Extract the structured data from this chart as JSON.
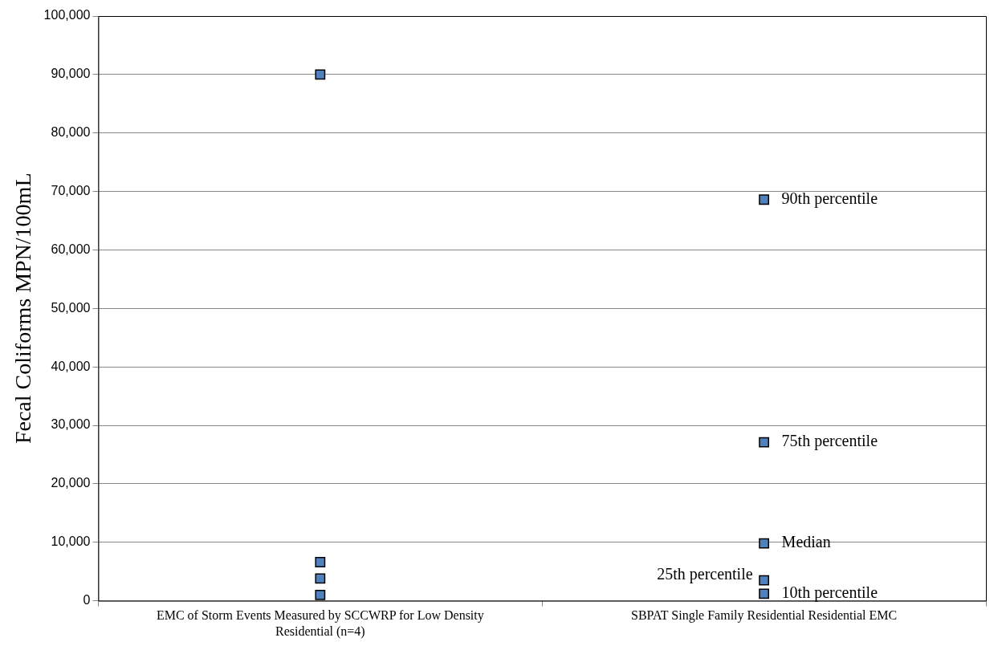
{
  "chart_data": {
    "type": "scatter",
    "ylabel": "Fecal Coliforms MPN/100mL",
    "categories": [
      "EMC of Storm Events Measured by SCCWRP for Low Density Residential (n=4)",
      "SBPAT Single Family Residential Residential EMC"
    ],
    "series": [
      {
        "color": "#4f81bd",
        "x": [
          "EMC of Storm Events Measured by SCCWRP for Low Density Residential (n=4)",
          "EMC of Storm Events Measured by SCCWRP for Low Density Residential (n=4)",
          "EMC of Storm Events Measured by SCCWRP for Low Density Residential (n=4)",
          "EMC of Storm Events Measured by SCCWRP for Low Density Residential (n=4)",
          "SBPAT Single Family Residential Residential EMC",
          "SBPAT Single Family Residential Residential EMC",
          "SBPAT Single Family Residential Residential EMC",
          "SBPAT Single Family Residential Residential EMC",
          "SBPAT Single Family Residential Residential EMC"
        ],
        "values": [
          90000,
          6600,
          3800,
          1000,
          68600,
          27100,
          9800,
          3500,
          1200
        ]
      }
    ],
    "annotations": [
      {
        "text": "90th percentile",
        "x": "SBPAT Single Family Residential Residential EMC",
        "y": 68600
      },
      {
        "text": "75th percentile",
        "x": "SBPAT Single Family Residential Residential EMC",
        "y": 27100
      },
      {
        "text": "Median",
        "x": "SBPAT Single Family Residential Residential EMC",
        "y": 9800
      },
      {
        "text": "25th percentile",
        "x": "SBPAT Single Family Residential Residential EMC",
        "y": 3500
      },
      {
        "text": "10th percentile",
        "x": "SBPAT Single Family Residential Residential EMC",
        "y": 1200
      }
    ],
    "ylim": [
      0,
      100000
    ],
    "yticks": [
      0,
      {
        "value": 10000,
        "label": "10,000"
      },
      {
        "value": 20000,
        "label": "20,000"
      },
      {
        "value": 30000,
        "label": "30,000"
      },
      {
        "value": 40000,
        "label": "40,000"
      },
      {
        "value": 50000,
        "label": "50,000"
      },
      {
        "value": 60000,
        "label": "60,000"
      },
      {
        "value": 70000,
        "label": "70,000"
      },
      {
        "value": 80000,
        "label": "80,000"
      },
      {
        "value": 90000,
        "label": "90,000"
      },
      {
        "value": 100000,
        "label": "100,000"
      }
    ],
    "grid": "y",
    "marker": "square",
    "legend": false
  }
}
